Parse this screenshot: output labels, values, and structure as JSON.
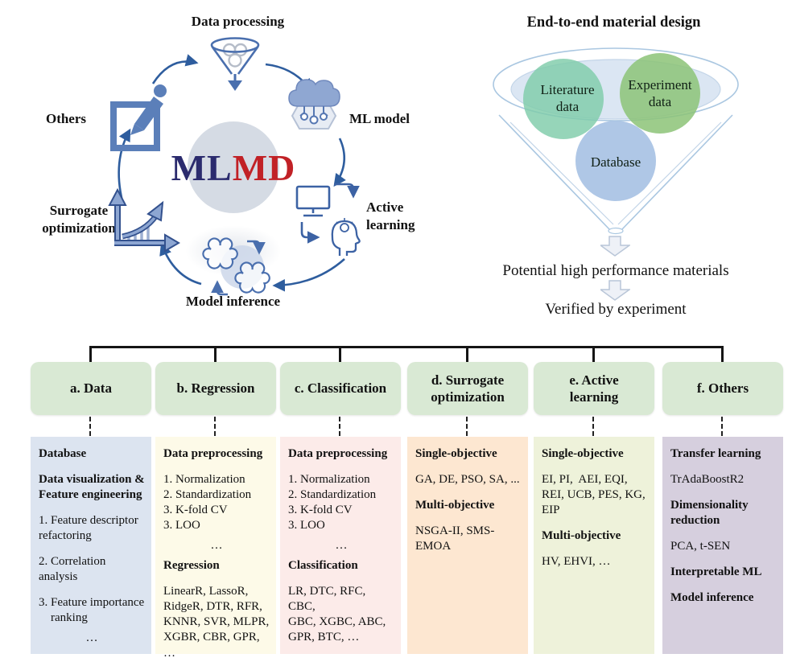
{
  "colors": {
    "arrow_blue": "#2e5d9e",
    "icon_blue": "#4a6fae",
    "logo_navy": "#2b2b6e",
    "logo_red": "#c12126",
    "center_circle": "#d5dbe4",
    "header_green": "#d9e9d4",
    "funnel_outline": "#aac7e1"
  },
  "cycle": {
    "logo_ml": "ML",
    "logo_md": "MD",
    "nodes": [
      {
        "label": "Data processing",
        "icon": "funnel-icon"
      },
      {
        "label": "ML model",
        "icon": "cloud-network-icon"
      },
      {
        "label": "Active\nlearning",
        "icon": "monitor-head-icon"
      },
      {
        "label": "Model inference",
        "icon": "clouds-cycle-icon"
      },
      {
        "label": "Surrogate\noptimization",
        "icon": "chart-growth-icon"
      },
      {
        "label": "Others",
        "icon": "edit-square-icon"
      }
    ]
  },
  "funnel": {
    "title": "End-to-end material design",
    "sources": [
      {
        "label": "Literature\ndata",
        "color": "#7fccaa"
      },
      {
        "label": "Experiment\ndata",
        "color": "#8cc377"
      },
      {
        "label": "Database",
        "color": "#a6c1e3"
      }
    ],
    "outcome": "Potential high performance materials",
    "verification": "Verified by experiment"
  },
  "taxonomy": {
    "columns": [
      {
        "header": "a. Data",
        "bg": "#dce4f0",
        "blocks": [
          {
            "bold": true,
            "text": "Database"
          },
          {
            "bold": true,
            "text": "Data visualization &\nFeature engineering"
          },
          {
            "text": "1. Feature descriptor\nrefactoring"
          },
          {
            "text": "2. Correlation analysis"
          },
          {
            "text": "3. Feature importance\n    ranking"
          },
          {
            "center": true,
            "text": "…"
          }
        ]
      },
      {
        "header": "b. Regression",
        "bg": "#fdfae8",
        "blocks": [
          {
            "bold": true,
            "text": "Data preprocessing"
          },
          {
            "text": "1. Normalization\n2. Standardization\n3. K-fold CV\n3. LOO"
          },
          {
            "center": true,
            "text": "…"
          },
          {
            "bold": true,
            "text": "Regression"
          },
          {
            "text": "LinearR, LassoR,\nRidgeR, DTR, RFR,\nKNNR, SVR, MLPR,\nXGBR, CBR, GPR, …"
          }
        ]
      },
      {
        "header": "c. Classification",
        "bg": "#fcebe9",
        "blocks": [
          {
            "bold": true,
            "text": "Data preprocessing"
          },
          {
            "text": "1. Normalization\n2. Standardization\n3. K-fold CV\n3. LOO"
          },
          {
            "center": true,
            "text": "…"
          },
          {
            "bold": true,
            "text": "Classification"
          },
          {
            "text": "LR, DTC, RFC, CBC,\nGBC, XGBC, ABC,\nGPR, BTC, …"
          }
        ]
      },
      {
        "header": "d. Surrogate\noptimization",
        "bg": "#fde7d1",
        "blocks": [
          {
            "bold": true,
            "text": "Single-objective"
          },
          {
            "text": "GA, DE, PSO, SA, ..."
          },
          {
            "bold": true,
            "text": "Multi-objective"
          },
          {
            "text": "NSGA-II, SMS-\nEMOA"
          }
        ]
      },
      {
        "header": "e. Active\nlearning",
        "bg": "#eef2da",
        "blocks": [
          {
            "bold": true,
            "text": "Single-objective"
          },
          {
            "text": "EI, PI,  AEI, EQI,\nREI, UCB, PES, KG,\nEIP"
          },
          {
            "bold": true,
            "text": "Multi-objective"
          },
          {
            "text": "HV, EHVI, …"
          }
        ]
      },
      {
        "header": "f. Others",
        "bg": "#d6cfde",
        "blocks": [
          {
            "bold": true,
            "text": "Transfer learning"
          },
          {
            "text": "TrAdaBoostR2"
          },
          {
            "bold": true,
            "text": "Dimensionality\nreduction"
          },
          {
            "text": "PCA, t-SEN"
          },
          {
            "bold": true,
            "text": "Interpretable ML"
          },
          {
            "bold": true,
            "text": "Model inference"
          }
        ]
      }
    ]
  }
}
